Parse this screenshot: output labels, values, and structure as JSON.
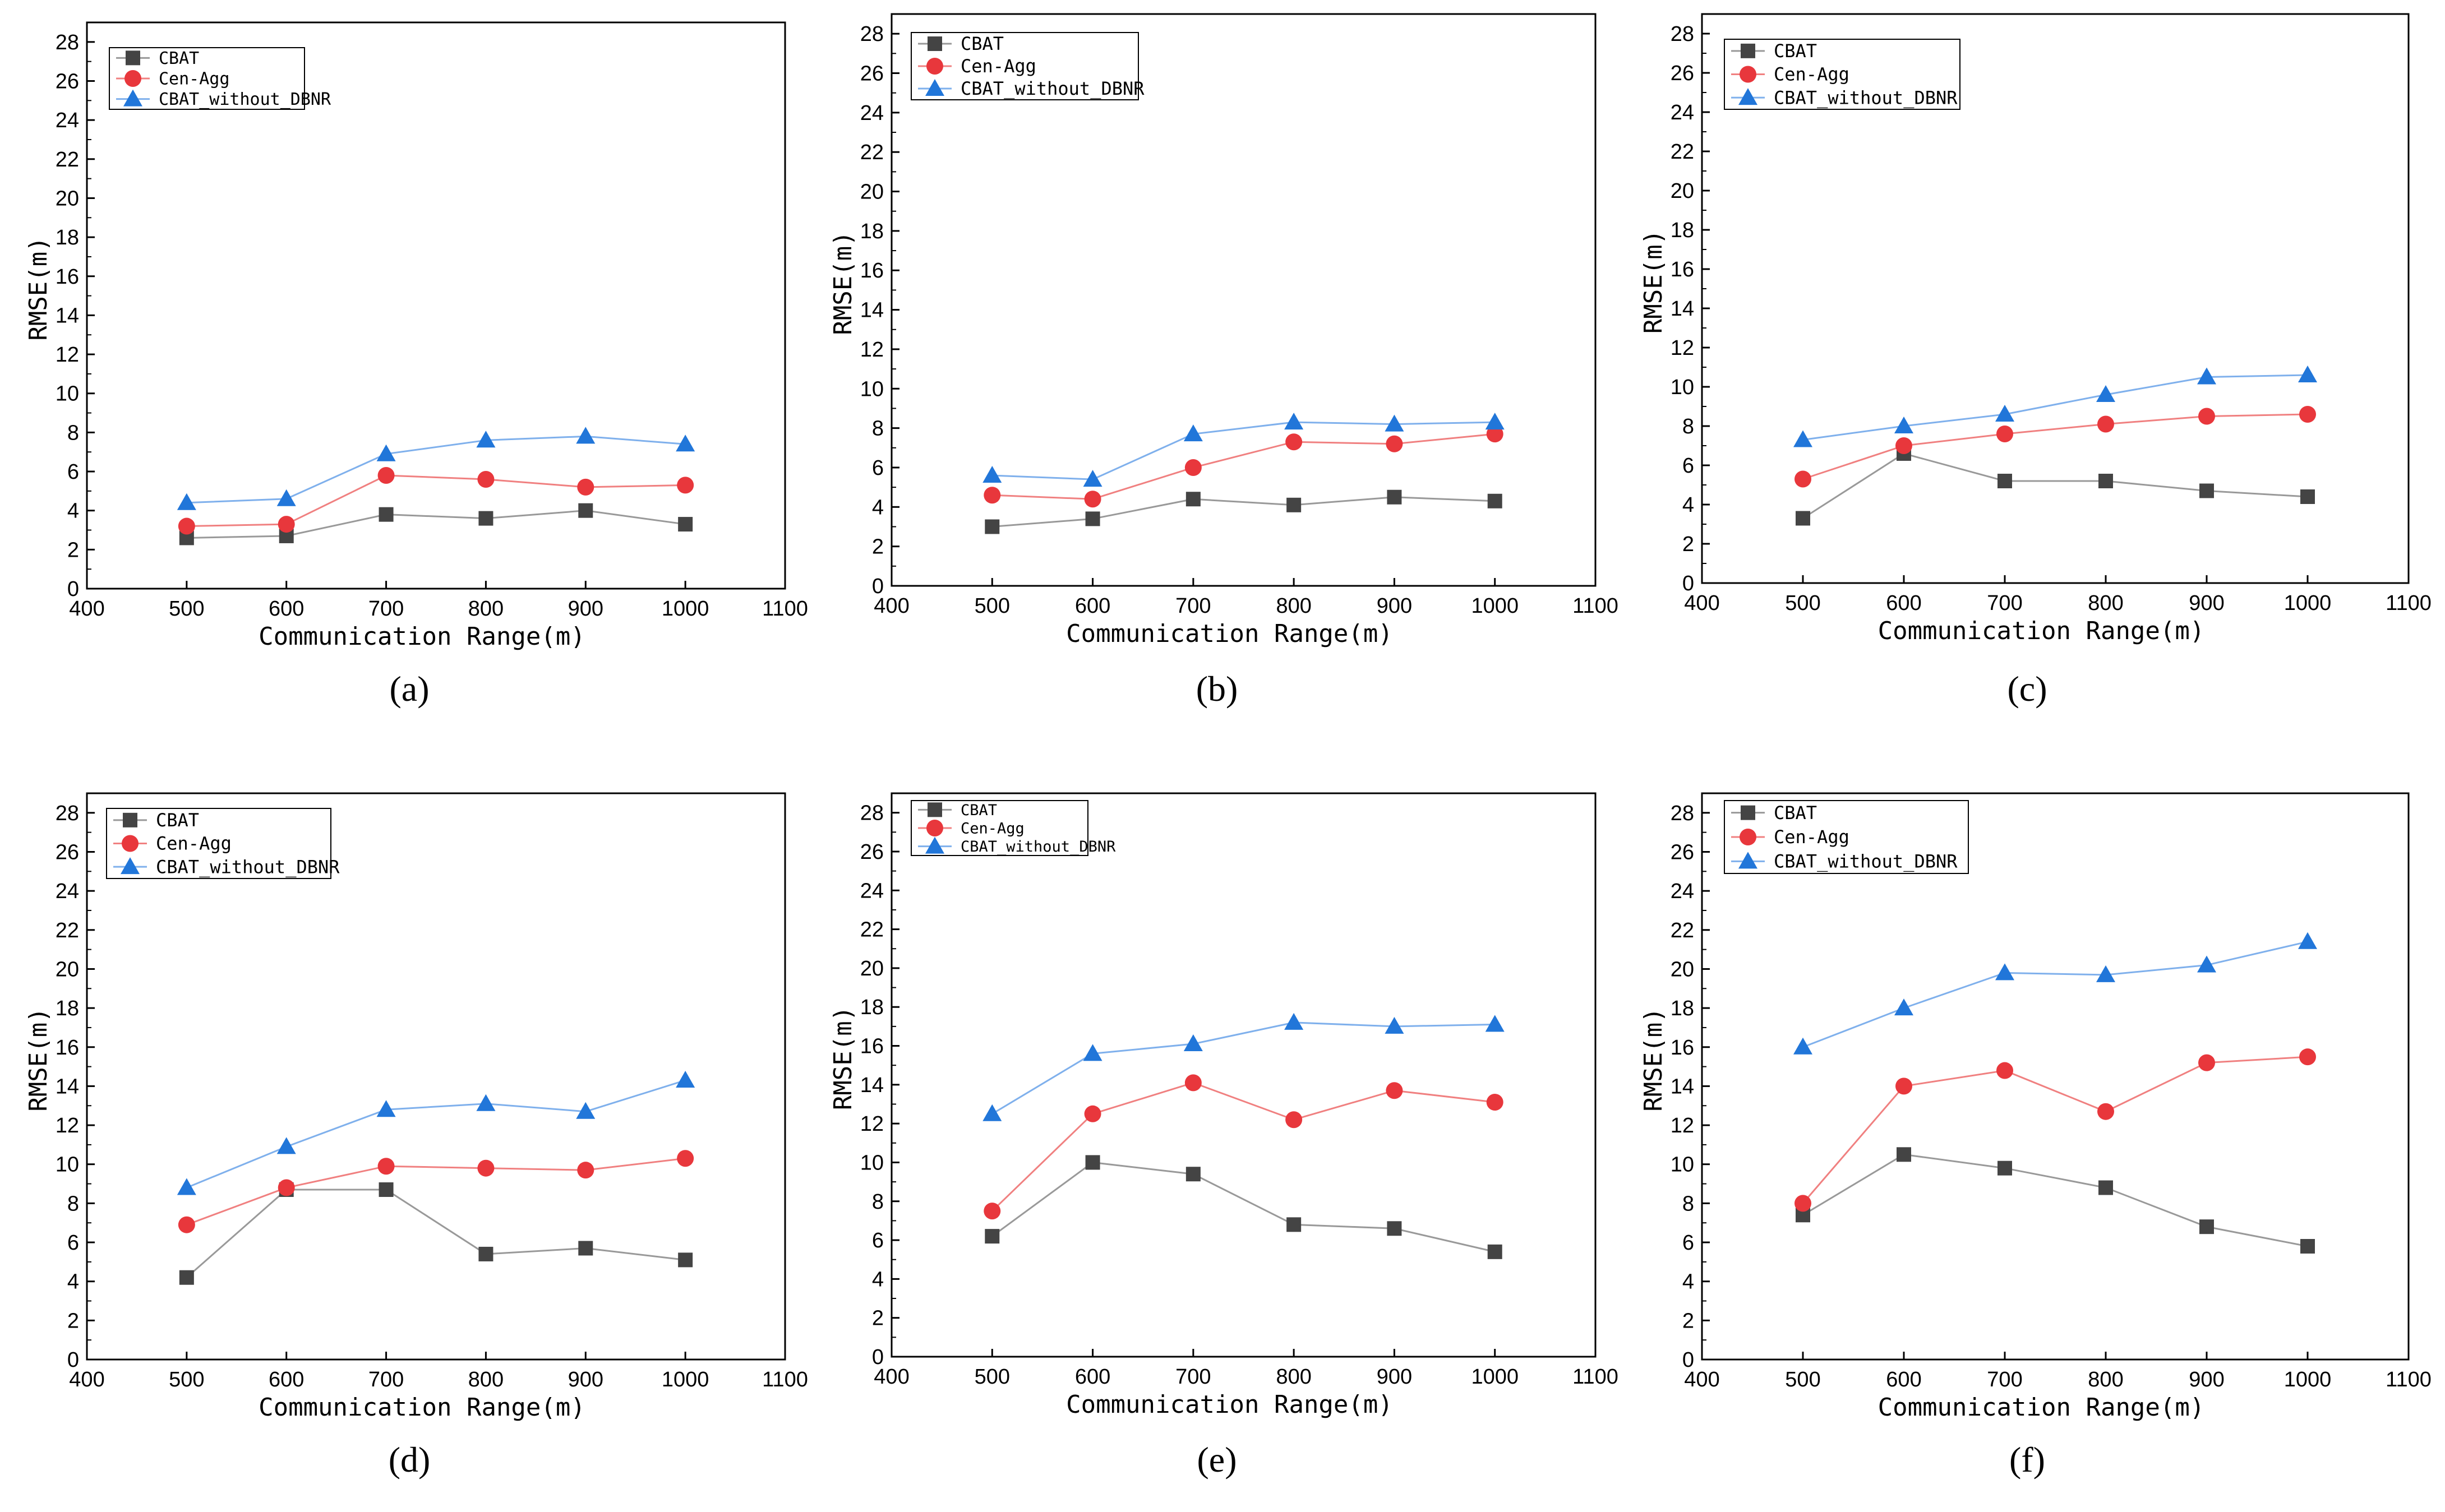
{
  "figure": {
    "panel_labels": [
      "(a)",
      "(b)",
      "(c)",
      "(d)",
      "(e)",
      "(f)"
    ]
  },
  "colors": {
    "cbat": "#444444",
    "cen_agg": "#e8373c",
    "cbat_without_dbnr": "#2176d9",
    "cbat_line": "#999999",
    "cen_agg_line": "#f08080",
    "cbat_without_dbnr_line": "#7fb0ec"
  },
  "chart_data": [
    {
      "type": "line",
      "label": "(a)",
      "xlabel": "Communication Range(m)",
      "ylabel": "RMSE(m)",
      "xlim": [
        400,
        1100
      ],
      "ylim": [
        0,
        29
      ],
      "xticks": [
        400,
        500,
        600,
        700,
        800,
        900,
        1000,
        1100
      ],
      "yticks": [
        0,
        2,
        4,
        6,
        8,
        10,
        12,
        14,
        16,
        18,
        20,
        22,
        24,
        26,
        28
      ],
      "legend_position": "top-left",
      "x": [
        500,
        600,
        700,
        800,
        900,
        1000
      ],
      "series": [
        {
          "name": "CBAT",
          "marker": "square",
          "values": [
            2.6,
            2.7,
            3.8,
            3.6,
            4.0,
            3.3
          ]
        },
        {
          "name": "Cen-Agg",
          "marker": "circle",
          "values": [
            3.2,
            3.3,
            5.8,
            5.6,
            5.2,
            5.3
          ]
        },
        {
          "name": "CBAT_without_DBNR",
          "marker": "triangle",
          "values": [
            4.4,
            4.6,
            6.9,
            7.6,
            7.8,
            7.4
          ]
        }
      ]
    },
    {
      "type": "line",
      "label": "(b)",
      "xlabel": "Communication Range(m)",
      "ylabel": "RMSE(m)",
      "xlim": [
        400,
        1100
      ],
      "ylim": [
        0,
        29
      ],
      "xticks": [
        400,
        500,
        600,
        700,
        800,
        900,
        1000,
        1100
      ],
      "yticks": [
        0,
        2,
        4,
        6,
        8,
        10,
        12,
        14,
        16,
        18,
        20,
        22,
        24,
        26,
        28
      ],
      "legend_position": "top-left",
      "x": [
        500,
        600,
        700,
        800,
        900,
        1000
      ],
      "series": [
        {
          "name": "CBAT",
          "marker": "square",
          "values": [
            3.0,
            3.4,
            4.4,
            4.1,
            4.5,
            4.3
          ]
        },
        {
          "name": "Cen-Agg",
          "marker": "circle",
          "values": [
            4.6,
            4.4,
            6.0,
            7.3,
            7.2,
            7.7
          ]
        },
        {
          "name": "CBAT_without_DBNR",
          "marker": "triangle",
          "values": [
            5.6,
            5.4,
            7.7,
            8.3,
            8.2,
            8.3
          ]
        }
      ]
    },
    {
      "type": "line",
      "label": "(c)",
      "xlabel": "Communication Range(m)",
      "ylabel": "RMSE(m)",
      "xlim": [
        400,
        1100
      ],
      "ylim": [
        0,
        29
      ],
      "xticks": [
        400,
        500,
        600,
        700,
        800,
        900,
        1000,
        1100
      ],
      "yticks": [
        0,
        2,
        4,
        6,
        8,
        10,
        12,
        14,
        16,
        18,
        20,
        22,
        24,
        26,
        28
      ],
      "legend_position": "top-left",
      "x": [
        500,
        600,
        700,
        800,
        900,
        1000
      ],
      "series": [
        {
          "name": "CBAT",
          "marker": "square",
          "values": [
            3.3,
            6.6,
            5.2,
            5.2,
            4.7,
            4.4
          ]
        },
        {
          "name": "Cen-Agg",
          "marker": "circle",
          "values": [
            5.3,
            7.0,
            7.6,
            8.1,
            8.5,
            8.6
          ]
        },
        {
          "name": "CBAT_without_DBNR",
          "marker": "triangle",
          "values": [
            7.3,
            8.0,
            8.6,
            9.6,
            10.5,
            10.6
          ]
        }
      ]
    },
    {
      "type": "line",
      "label": "(d)",
      "xlabel": "Communication Range(m)",
      "ylabel": "RMSE(m)",
      "xlim": [
        400,
        1100
      ],
      "ylim": [
        0,
        29
      ],
      "xticks": [
        400,
        500,
        600,
        700,
        800,
        900,
        1000,
        1100
      ],
      "yticks": [
        0,
        2,
        4,
        6,
        8,
        10,
        12,
        14,
        16,
        18,
        20,
        22,
        24,
        26,
        28
      ],
      "legend_position": "top-left",
      "x": [
        500,
        600,
        700,
        800,
        900,
        1000
      ],
      "series": [
        {
          "name": "CBAT",
          "marker": "square",
          "values": [
            4.2,
            8.7,
            8.7,
            5.4,
            5.7,
            5.1
          ]
        },
        {
          "name": "Cen-Agg",
          "marker": "circle",
          "values": [
            6.9,
            8.8,
            9.9,
            9.8,
            9.7,
            10.3
          ]
        },
        {
          "name": "CBAT_without_DBNR",
          "marker": "triangle",
          "values": [
            8.8,
            10.9,
            12.8,
            13.1,
            12.7,
            14.3
          ]
        }
      ]
    },
    {
      "type": "line",
      "label": "(e)",
      "xlabel": "Communication Range(m)",
      "ylabel": "RMSE(m)",
      "xlim": [
        400,
        1100
      ],
      "ylim": [
        0,
        29
      ],
      "xticks": [
        400,
        500,
        600,
        700,
        800,
        900,
        1000,
        1100
      ],
      "yticks": [
        0,
        2,
        4,
        6,
        8,
        10,
        12,
        14,
        16,
        18,
        20,
        22,
        24,
        26,
        28
      ],
      "legend_position": "top-left",
      "x": [
        500,
        600,
        700,
        800,
        900,
        1000
      ],
      "series": [
        {
          "name": "CBAT",
          "marker": "square",
          "values": [
            6.2,
            10.0,
            9.4,
            6.8,
            6.6,
            5.4
          ]
        },
        {
          "name": "Cen-Agg",
          "marker": "circle",
          "values": [
            7.5,
            12.5,
            14.1,
            12.2,
            13.7,
            13.1
          ]
        },
        {
          "name": "CBAT_without_DBNR",
          "marker": "triangle",
          "values": [
            12.5,
            15.6,
            16.1,
            17.2,
            17.0,
            17.1
          ]
        }
      ]
    },
    {
      "type": "line",
      "label": "(f)",
      "xlabel": "Communication Range(m)",
      "ylabel": "RMSE(m)",
      "xlim": [
        400,
        1100
      ],
      "ylim": [
        0,
        29
      ],
      "xticks": [
        400,
        500,
        600,
        700,
        800,
        900,
        1000,
        1100
      ],
      "yticks": [
        0,
        2,
        4,
        6,
        8,
        10,
        12,
        14,
        16,
        18,
        20,
        22,
        24,
        26,
        28
      ],
      "legend_position": "top-left",
      "x": [
        500,
        600,
        700,
        800,
        900,
        1000
      ],
      "series": [
        {
          "name": "CBAT",
          "marker": "square",
          "values": [
            7.4,
            10.5,
            9.8,
            8.8,
            6.8,
            5.8
          ]
        },
        {
          "name": "Cen-Agg",
          "marker": "circle",
          "values": [
            8.0,
            14.0,
            14.8,
            12.7,
            15.2,
            15.5
          ]
        },
        {
          "name": "CBAT_without_DBNR",
          "marker": "triangle",
          "values": [
            16.0,
            18.0,
            19.8,
            19.7,
            20.2,
            21.4
          ]
        }
      ]
    }
  ]
}
